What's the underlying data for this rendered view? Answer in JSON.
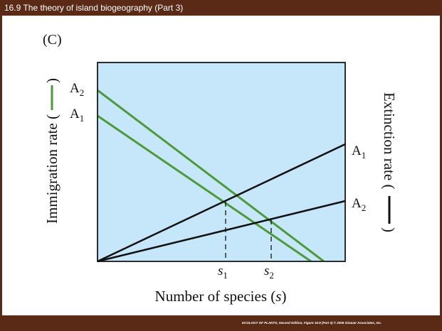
{
  "header": {
    "title": "16.9 The theory of island biogeography (Part 3)"
  },
  "figure": {
    "panel_label": "(C)",
    "immigration_curves": [
      {
        "letter": "A",
        "sub": "2"
      },
      {
        "letter": "A",
        "sub": "1"
      }
    ],
    "extinction_curves": [
      {
        "letter": "A",
        "sub": "1"
      },
      {
        "letter": "A",
        "sub": "2"
      }
    ],
    "equilibria": [
      {
        "letter": "s",
        "sub": "1"
      },
      {
        "letter": "s",
        "sub": "2"
      }
    ],
    "left_axis": {
      "text": "Immigration rate (",
      "close": ")"
    },
    "right_axis": {
      "text": "Extinction rate (",
      "close": ")"
    },
    "x_axis": {
      "text": "Number of species (",
      "symbol": "s",
      "close": ")"
    }
  },
  "footer": {
    "credit": "ECOLOGY OF PLANTS, Second Edition, Figure 16.9 (Part 3)  © 2006 Sinauer Associates, Inc."
  }
}
